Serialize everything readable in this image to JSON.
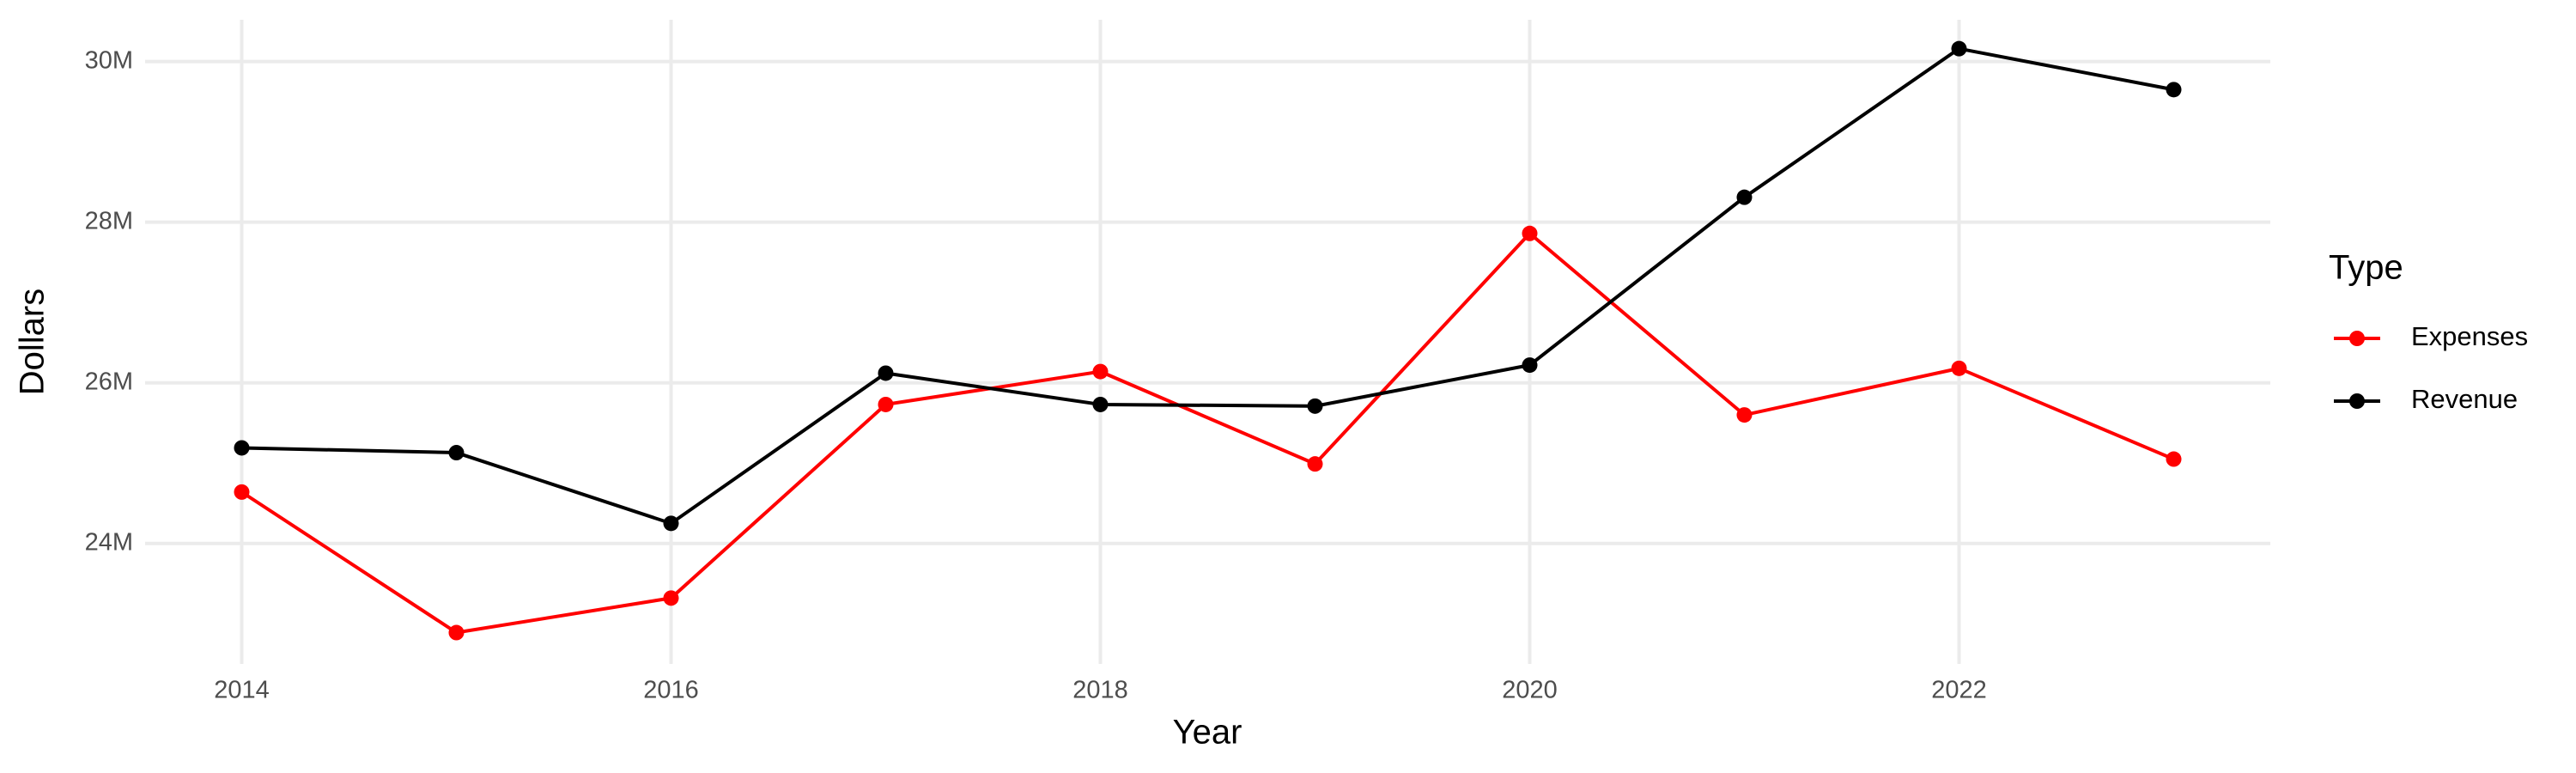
{
  "chart_data": {
    "type": "line",
    "x_label": "Year",
    "y_label": "Dollars",
    "legend_title": "Type",
    "legend": "right",
    "grid": true,
    "x": [
      2014,
      2015,
      2016,
      2017,
      2018,
      2019,
      2020,
      2021,
      2022,
      2023
    ],
    "series": [
      {
        "name": "Expenses",
        "color": "#ff0000",
        "values": [
          24640000,
          22890000,
          23320000,
          25730000,
          26140000,
          24990000,
          27860000,
          25600000,
          26180000,
          25050000
        ]
      },
      {
        "name": "Revenue",
        "color": "#000000",
        "values": [
          25190000,
          25130000,
          24250000,
          26120000,
          25730000,
          25710000,
          26220000,
          28310000,
          30160000,
          29650000
        ]
      }
    ],
    "xlim": [
      2013.55,
      2023.45
    ],
    "xticks": [
      2014,
      2016,
      2018,
      2020,
      2022
    ],
    "ylim": [
      22500000,
      30520000
    ],
    "yticks": [
      {
        "value": 24000000,
        "label": "24M"
      },
      {
        "value": 26000000,
        "label": "26M"
      },
      {
        "value": 28000000,
        "label": "28M"
      },
      {
        "value": 30000000,
        "label": "30M"
      }
    ]
  }
}
